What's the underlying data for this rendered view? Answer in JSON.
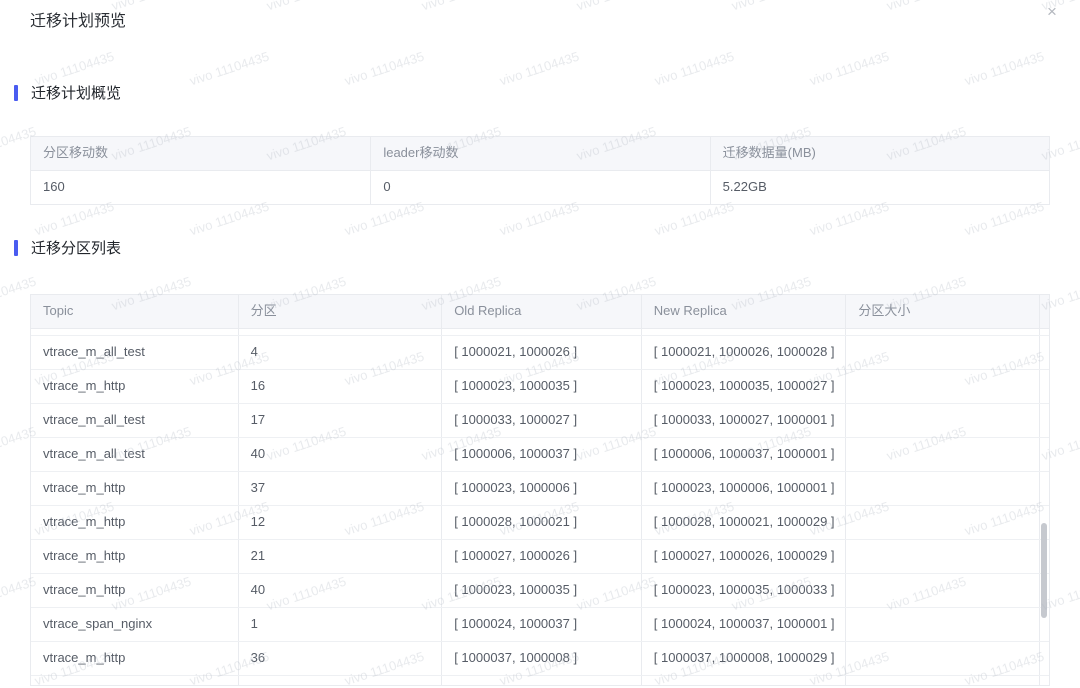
{
  "dialog": {
    "title": "迁移计划预览",
    "close_icon": "×"
  },
  "watermark": {
    "text": "vivo 11104435"
  },
  "overview": {
    "section_title": "迁移计划概览",
    "columns": [
      "分区移动数",
      "leader移动数",
      "迁移数据量(MB)"
    ],
    "values": [
      "160",
      "0",
      "5.22GB"
    ]
  },
  "partitions": {
    "section_title": "迁移分区列表",
    "columns": [
      "Topic",
      "分区",
      "Old Replica",
      "New Replica",
      "分区大小"
    ],
    "rows": [
      [
        "vtrace_m_all_test",
        "4",
        "[ 1000021, 1000026 ]",
        "[ 1000021, 1000026, 1000028 ]",
        ""
      ],
      [
        "vtrace_m_http",
        "16",
        "[ 1000023, 1000035 ]",
        "[ 1000023, 1000035, 1000027 ]",
        ""
      ],
      [
        "vtrace_m_all_test",
        "17",
        "[ 1000033, 1000027 ]",
        "[ 1000033, 1000027, 1000001 ]",
        ""
      ],
      [
        "vtrace_m_all_test",
        "40",
        "[ 1000006, 1000037 ]",
        "[ 1000006, 1000037, 1000001 ]",
        ""
      ],
      [
        "vtrace_m_http",
        "37",
        "[ 1000023, 1000006 ]",
        "[ 1000023, 1000006, 1000001 ]",
        ""
      ],
      [
        "vtrace_m_http",
        "12",
        "[ 1000028, 1000021 ]",
        "[ 1000028, 1000021, 1000029 ]",
        ""
      ],
      [
        "vtrace_m_http",
        "21",
        "[ 1000027, 1000026 ]",
        "[ 1000027, 1000026, 1000029 ]",
        ""
      ],
      [
        "vtrace_m_http",
        "40",
        "[ 1000023, 1000035 ]",
        "[ 1000023, 1000035, 1000033 ]",
        ""
      ],
      [
        "vtrace_span_nginx",
        "1",
        "[ 1000024, 1000037 ]",
        "[ 1000024, 1000037, 1000001 ]",
        ""
      ],
      [
        "vtrace_m_http",
        "36",
        "[ 1000037, 1000008 ]",
        "[ 1000037, 1000008, 1000029 ]",
        ""
      ]
    ]
  },
  "colors": {
    "accent": "#4a5cf0",
    "table_header_bg": "#f6f7fa",
    "border": "#e9ebef",
    "scroll_thumb": "#c6c9cf"
  }
}
